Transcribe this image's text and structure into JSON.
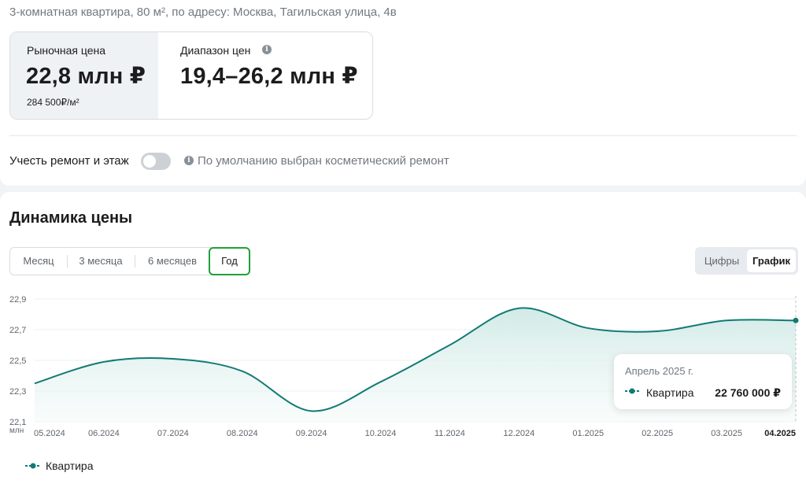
{
  "address": "3-комнатная квартира, 80 м², по адресу: Москва, Тагильская улица, 4в",
  "market": {
    "label": "Рыночная цена",
    "value": "22,8 млн ₽",
    "per_m2": "284 500₽/м²"
  },
  "range": {
    "label": "Диапазон цен",
    "value": "19,4–26,2 млн ₽",
    "info_icon": "info-icon"
  },
  "renovation": {
    "label": "Учесть ремонт и этаж",
    "enabled": false,
    "hint": "По умолчанию выбран косметический ремонт"
  },
  "dynamics": {
    "title": "Динамика цены",
    "periods": [
      "Месяц",
      "3 месяца",
      "6 месяцев",
      "Год"
    ],
    "active_period": "Год",
    "views": [
      "Цифры",
      "График"
    ],
    "active_view": "График"
  },
  "tooltip": {
    "date": "Апрель 2025 г.",
    "series": "Квартира",
    "value": "22 760 000 ₽"
  },
  "legend": {
    "label": "Квартира"
  },
  "colors": {
    "accent": "#21a038",
    "line": "#127a74",
    "fill": "#d4ede9"
  },
  "chart_data": {
    "type": "area",
    "x": [
      "05.2024",
      "06.2024",
      "07.2024",
      "08.2024",
      "09.2024",
      "10.2024",
      "11.2024",
      "12.2024",
      "01.2025",
      "02.2025",
      "03.2025",
      "04.2025"
    ],
    "series": [
      {
        "name": "Квартира",
        "values": [
          22.35,
          22.49,
          22.51,
          22.43,
          22.17,
          22.36,
          22.6,
          22.84,
          22.71,
          22.69,
          22.76,
          22.76
        ]
      }
    ],
    "yticks": [
      "22,9",
      "22,7",
      "22,5",
      "22,3",
      "22,1"
    ],
    "ylabel": "млн",
    "ylim": [
      22.1,
      22.9
    ],
    "highlight_x": "04.2025",
    "grid": true
  }
}
